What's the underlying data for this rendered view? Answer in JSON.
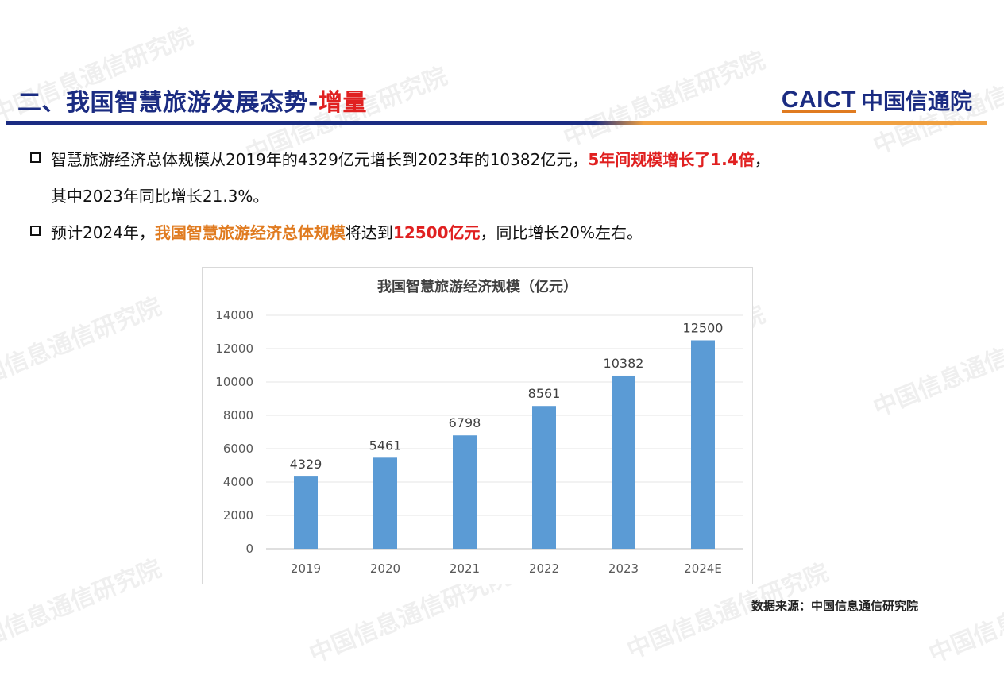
{
  "header": {
    "title_main": "二、我国智慧旅游发展态势-",
    "title_highlight": "增量",
    "logo_en": "CAICT",
    "logo_cn": "中国信通院"
  },
  "bullets": [
    {
      "p1": "智慧旅游经济总体规模从2019年的4329亿元增长到2023年的10382亿元，",
      "p1_red": "5年间规模增长了1.4倍",
      "p1_end": "，",
      "p2": "其中2023年同比增长21.3%。"
    },
    {
      "p1": "预计2024年，",
      "p1_orange": "我国智慧旅游经济总体规模",
      "p1_mid": "将达到",
      "p1_red": "12500亿元",
      "p1_end": "，同比增长20%左右。"
    }
  ],
  "chart_data": {
    "type": "bar",
    "title": "我国智慧旅游经济规模（亿元）",
    "categories": [
      "2019",
      "2020",
      "2021",
      "2022",
      "2023",
      "2024E"
    ],
    "values": [
      4329,
      5461,
      6798,
      8561,
      10382,
      12500
    ],
    "ylim": [
      0,
      14000
    ],
    "yticks": [
      0,
      2000,
      4000,
      6000,
      8000,
      10000,
      12000,
      14000
    ],
    "grid": true,
    "bar_color": "#5b9bd5",
    "data_labels": true
  },
  "source": "数据来源：中国信息通信研究院",
  "watermark": "中国信息通信研究院",
  "colors": {
    "navy": "#1b2c82",
    "red": "#e02020",
    "orange": "#e07b20"
  }
}
